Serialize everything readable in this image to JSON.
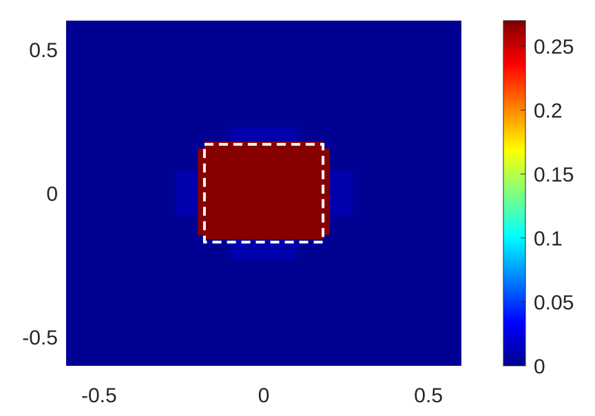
{
  "chart_data": {
    "type": "heatmap",
    "title": "",
    "xlabel": "",
    "ylabel": "",
    "xlim": [
      -0.6,
      0.6
    ],
    "ylim": [
      -0.6,
      0.6
    ],
    "x_ticks": [
      {
        "value": -0.5,
        "label": "-0.5"
      },
      {
        "value": 0,
        "label": "0"
      },
      {
        "value": 0.5,
        "label": "0.5"
      }
    ],
    "y_ticks": [
      {
        "value": 0.5,
        "label": "0.5"
      },
      {
        "value": 0,
        "label": "0"
      },
      {
        "value": -0.5,
        "label": "-0.5"
      }
    ],
    "grid": false,
    "colormap": "jet",
    "background_value": 0.005,
    "regions": [
      {
        "name": "square",
        "x": [
          -0.18,
          0.18
        ],
        "y": [
          -0.16,
          0.18
        ],
        "value": 0.268
      },
      {
        "name": "left-step",
        "x": [
          -0.2,
          -0.18
        ],
        "y": [
          -0.145,
          0.155
        ],
        "value": 0.268
      },
      {
        "name": "right-step",
        "x": [
          0.18,
          0.2
        ],
        "y": [
          -0.145,
          0.155
        ],
        "value": 0.268
      },
      {
        "name": "left-halo",
        "x": [
          -0.27,
          -0.2
        ],
        "y": [
          -0.08,
          0.08
        ],
        "value": 0.012
      },
      {
        "name": "right-halo",
        "x": [
          0.2,
          0.27
        ],
        "y": [
          -0.08,
          0.08
        ],
        "value": 0.012
      },
      {
        "name": "top-halo",
        "x": [
          -0.1,
          0.1
        ],
        "y": [
          0.18,
          0.23
        ],
        "value": 0.012
      },
      {
        "name": "bottom-halo",
        "x": [
          -0.1,
          0.1
        ],
        "y": [
          -0.23,
          -0.16
        ],
        "value": 0.012
      }
    ],
    "outline": {
      "x": [
        -0.18,
        0.18
      ],
      "y": [
        -0.17,
        0.17
      ],
      "color": "#ffffff",
      "style": "dashed"
    },
    "colorbar": {
      "range": [
        0,
        0.27
      ],
      "ticks": [
        {
          "value": 0,
          "label": "0"
        },
        {
          "value": 0.05,
          "label": "0.05"
        },
        {
          "value": 0.1,
          "label": "0.1"
        },
        {
          "value": 0.15,
          "label": "0.15"
        },
        {
          "value": 0.2,
          "label": "0.2"
        },
        {
          "value": 0.25,
          "label": "0.25"
        }
      ]
    }
  }
}
